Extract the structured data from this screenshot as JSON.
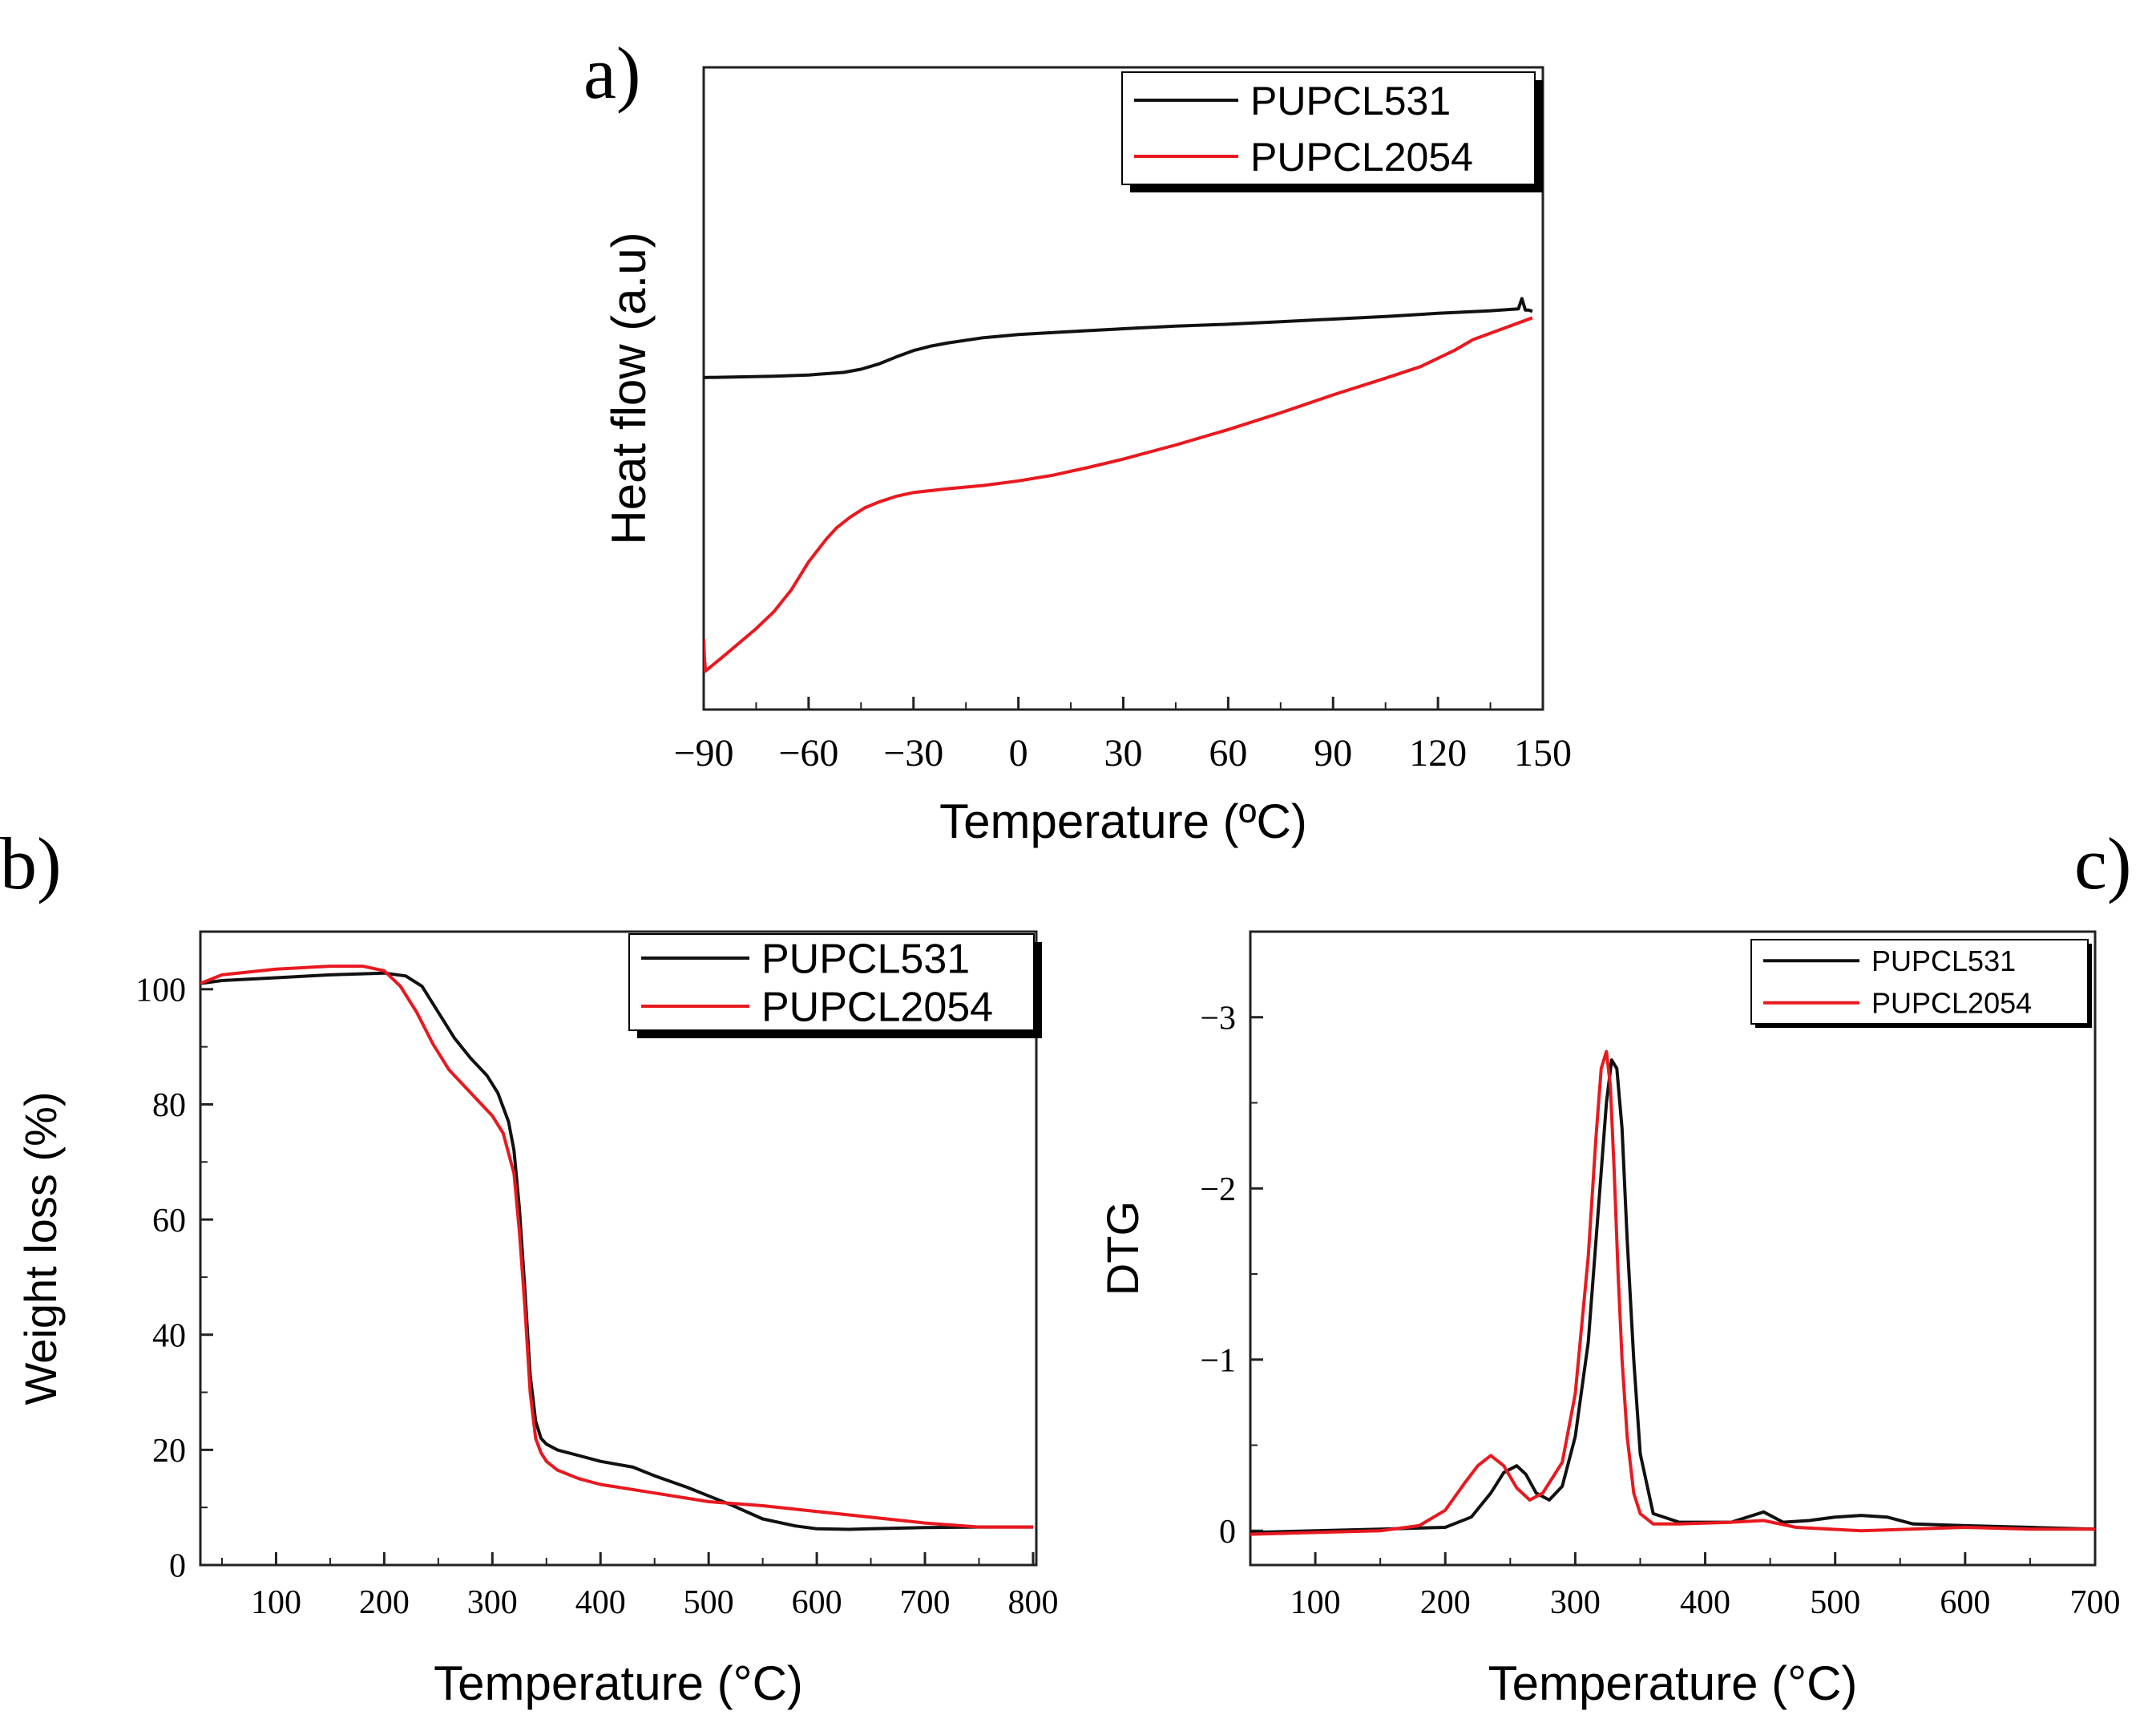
{
  "figure": {
    "panel_labels": [
      "a)",
      "b)",
      "c)"
    ]
  },
  "colors": {
    "series_black": "#111111",
    "series_red": "#e8191f",
    "axis": "#222222"
  },
  "chart_data": [
    {
      "id": "a",
      "type": "line",
      "title": "",
      "xlabel": "Temperature (ºC)",
      "ylabel": "Heat flow (a.u)",
      "xlim": [
        -90,
        150
      ],
      "ylim": [
        0,
        10
      ],
      "xticks": [
        -90,
        -60,
        -30,
        0,
        30,
        60,
        90,
        120,
        150
      ],
      "xtick_labels": [
        "−90",
        "−60",
        "−30",
        "0",
        "30",
        "60",
        "90",
        "120",
        "150"
      ],
      "yticks": [],
      "ytick_labels": [],
      "legend": {
        "position": "top-right",
        "entries": [
          "PUPCL531",
          "PUPCL2054"
        ]
      },
      "series": [
        {
          "name": "PUPCL531",
          "color": "#111111",
          "x": [
            -90,
            -80,
            -70,
            -60,
            -50,
            -45,
            -40,
            -35,
            -30,
            -25,
            -20,
            -10,
            0,
            10,
            20,
            30,
            45,
            60,
            75,
            90,
            105,
            120,
            135,
            143,
            144,
            145,
            146,
            147
          ],
          "y": [
            5.17,
            5.18,
            5.19,
            5.21,
            5.25,
            5.3,
            5.38,
            5.49,
            5.59,
            5.66,
            5.71,
            5.79,
            5.84,
            5.87,
            5.9,
            5.93,
            5.97,
            6.0,
            6.04,
            6.08,
            6.12,
            6.17,
            6.21,
            6.24,
            6.4,
            6.22,
            6.22,
            6.2
          ]
        },
        {
          "name": "PUPCL2054",
          "color": "#e8191f",
          "x": [
            -90,
            -89.8,
            -89.5,
            -85,
            -80,
            -75,
            -70,
            -65,
            -60,
            -55,
            -52,
            -48,
            -44,
            -40,
            -35,
            -30,
            -20,
            -10,
            0,
            10,
            20,
            30,
            45,
            60,
            75,
            90,
            105,
            115,
            125,
            130,
            140,
            147
          ],
          "y": [
            1.1,
            0.8,
            0.6,
            0.8,
            1.03,
            1.26,
            1.52,
            1.86,
            2.3,
            2.65,
            2.83,
            3.0,
            3.14,
            3.23,
            3.32,
            3.38,
            3.44,
            3.49,
            3.56,
            3.65,
            3.77,
            3.9,
            4.12,
            4.36,
            4.62,
            4.9,
            5.16,
            5.34,
            5.6,
            5.76,
            5.96,
            6.1
          ]
        }
      ]
    },
    {
      "id": "b",
      "type": "line",
      "title": "",
      "xlabel": "Temperature (°C)",
      "ylabel": "Weight loss (%)",
      "xlim": [
        30,
        803
      ],
      "ylim": [
        0,
        110
      ],
      "xticks": [
        100,
        200,
        300,
        400,
        500,
        600,
        700,
        800
      ],
      "xtick_labels": [
        "100",
        "200",
        "300",
        "400",
        "500",
        "600",
        "700",
        "800"
      ],
      "yticks": [
        0,
        20,
        40,
        60,
        80,
        100
      ],
      "ytick_labels": [
        "0",
        "20",
        "40",
        "60",
        "80",
        "100"
      ],
      "legend": {
        "position": "top-right",
        "entries": [
          "PUPCL531",
          "PUPCL2054"
        ]
      },
      "series": [
        {
          "name": "PUPCL531",
          "color": "#111111",
          "x": [
            30,
            50,
            100,
            150,
            200,
            220,
            235,
            250,
            265,
            280,
            295,
            305,
            315,
            320,
            325,
            330,
            335,
            340,
            345,
            350,
            360,
            380,
            400,
            430,
            450,
            480,
            500,
            520,
            550,
            580,
            600,
            630,
            650,
            700,
            750,
            800
          ],
          "y": [
            101,
            101.5,
            102,
            102.5,
            102.8,
            102.3,
            100.5,
            96,
            91.5,
            88,
            85,
            82,
            77,
            72,
            62,
            48,
            33,
            25,
            22,
            21,
            20,
            19,
            18,
            17,
            15.5,
            13.5,
            12,
            10.5,
            8,
            6.8,
            6.3,
            6.2,
            6.3,
            6.5,
            6.6,
            6.6
          ]
        },
        {
          "name": "PUPCL2054",
          "color": "#e8191f",
          "x": [
            30,
            50,
            100,
            150,
            180,
            200,
            215,
            230,
            245,
            260,
            280,
            300,
            310,
            320,
            325,
            330,
            335,
            340,
            345,
            350,
            360,
            380,
            400,
            450,
            500,
            550,
            600,
            650,
            700,
            750,
            800
          ],
          "y": [
            101,
            102.5,
            103.5,
            104,
            104,
            103.2,
            100.5,
            96,
            90.5,
            86,
            82,
            78,
            75,
            68,
            58,
            45,
            30,
            22,
            19.5,
            18,
            16.5,
            15,
            14,
            12.5,
            11,
            10.3,
            9.3,
            8.3,
            7.3,
            6.6,
            6.6
          ]
        }
      ]
    },
    {
      "id": "c",
      "type": "line",
      "title": "",
      "xlabel": "Temperature (°C)",
      "ylabel": "DTG",
      "xlim": [
        50,
        700
      ],
      "ylim": [
        0.2,
        -3.5
      ],
      "xticks": [
        100,
        200,
        300,
        400,
        500,
        600,
        700
      ],
      "xtick_labels": [
        "100",
        "200",
        "300",
        "400",
        "500",
        "600",
        "700"
      ],
      "yticks": [
        0,
        -1,
        -2,
        -3
      ],
      "ytick_labels": [
        "0",
        "−1",
        "−2",
        "−3"
      ],
      "legend": {
        "position": "top-right",
        "entries": [
          "PUPCL531",
          "PUPCL2054"
        ]
      },
      "series": [
        {
          "name": "PUPCL531",
          "color": "#111111",
          "x": [
            50,
            100,
            150,
            200,
            220,
            235,
            245,
            255,
            262,
            270,
            280,
            290,
            300,
            310,
            318,
            324,
            328,
            332,
            336,
            340,
            345,
            350,
            360,
            380,
            420,
            445,
            460,
            480,
            500,
            520,
            540,
            560,
            600,
            650,
            700
          ],
          "y": [
            0.01,
            0.0,
            -0.01,
            -0.02,
            -0.08,
            -0.22,
            -0.34,
            -0.38,
            -0.33,
            -0.22,
            -0.18,
            -0.26,
            -0.55,
            -1.1,
            -1.9,
            -2.5,
            -2.75,
            -2.7,
            -2.35,
            -1.7,
            -1.0,
            -0.45,
            -0.1,
            -0.05,
            -0.05,
            -0.11,
            -0.05,
            -0.06,
            -0.08,
            -0.09,
            -0.08,
            -0.04,
            -0.03,
            -0.02,
            -0.01
          ]
        },
        {
          "name": "PUPCL2054",
          "color": "#e8191f",
          "x": [
            50,
            100,
            150,
            180,
            200,
            215,
            225,
            235,
            245,
            255,
            265,
            275,
            290,
            300,
            310,
            316,
            320,
            324,
            327,
            330,
            333,
            336,
            340,
            345,
            350,
            360,
            380,
            420,
            445,
            470,
            520,
            600,
            650,
            700
          ],
          "y": [
            0.02,
            0.01,
            0.0,
            -0.03,
            -0.12,
            -0.28,
            -0.38,
            -0.44,
            -0.38,
            -0.25,
            -0.18,
            -0.22,
            -0.4,
            -0.8,
            -1.6,
            -2.3,
            -2.7,
            -2.8,
            -2.6,
            -2.1,
            -1.5,
            -1.0,
            -0.55,
            -0.22,
            -0.1,
            -0.04,
            -0.04,
            -0.05,
            -0.06,
            -0.02,
            0.0,
            -0.02,
            -0.01,
            -0.01
          ]
        }
      ]
    }
  ]
}
